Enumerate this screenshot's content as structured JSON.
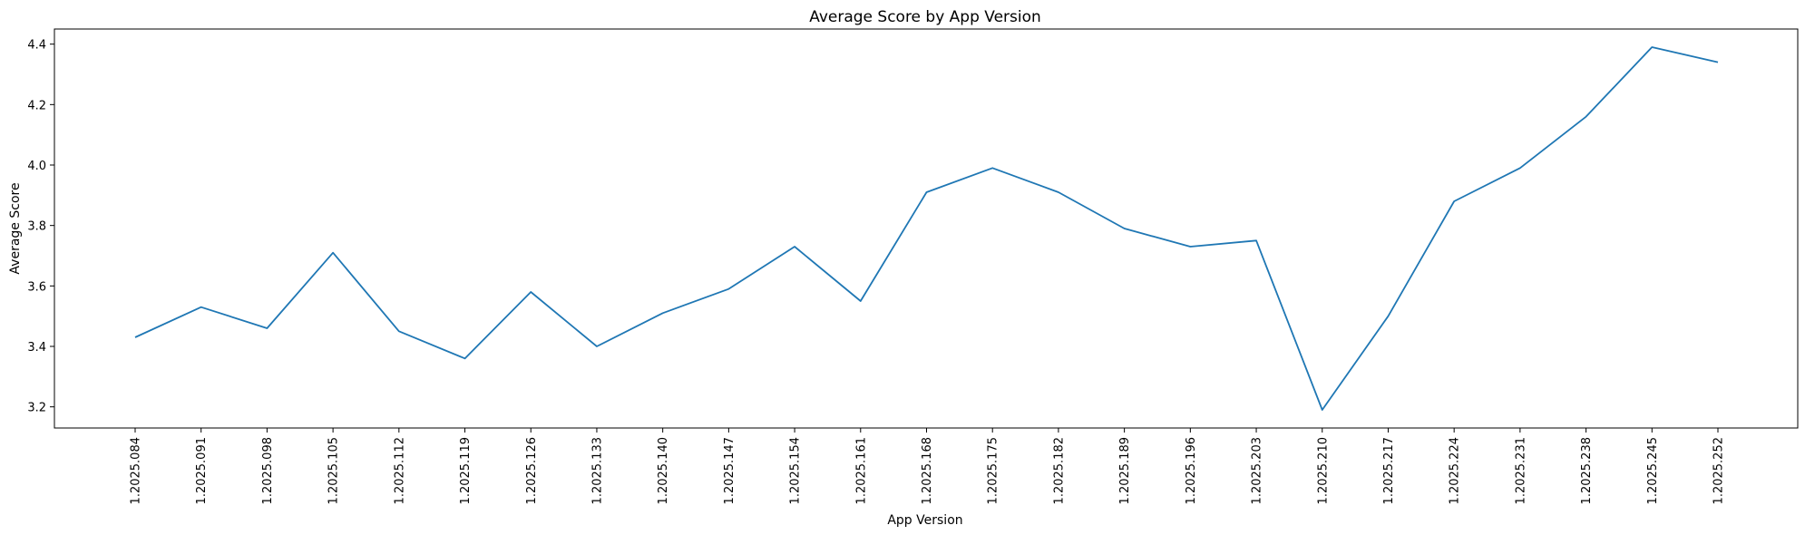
{
  "chart_data": {
    "type": "line",
    "title": "Average Score by App Version",
    "xlabel": "App Version",
    "ylabel": "Average Score",
    "categories": [
      "1.2025.084",
      "1.2025.091",
      "1.2025.098",
      "1.2025.105",
      "1.2025.112",
      "1.2025.119",
      "1.2025.126",
      "1.2025.133",
      "1.2025.140",
      "1.2025.147",
      "1.2025.154",
      "1.2025.161",
      "1.2025.168",
      "1.2025.175",
      "1.2025.182",
      "1.2025.189",
      "1.2025.196",
      "1.2025.203",
      "1.2025.210",
      "1.2025.217",
      "1.2025.224",
      "1.2025.231",
      "1.2025.238",
      "1.2025.245",
      "1.2025.252"
    ],
    "values": [
      3.43,
      3.53,
      3.46,
      3.71,
      3.45,
      3.36,
      3.58,
      3.4,
      3.51,
      3.59,
      3.73,
      3.55,
      3.91,
      3.99,
      3.91,
      3.79,
      3.73,
      3.75,
      3.19,
      3.5,
      3.88,
      3.99,
      4.16,
      4.39,
      4.34
    ],
    "yticks": [
      3.2,
      3.4,
      3.6,
      3.8,
      4.0,
      4.2,
      4.4
    ],
    "ylim": [
      3.13,
      4.45
    ],
    "grid": false,
    "line_color": "#1f77b4"
  }
}
